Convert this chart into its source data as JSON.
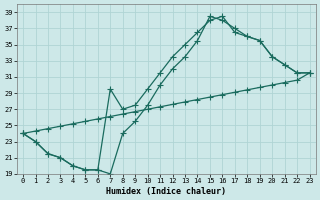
{
  "xlabel": "Humidex (Indice chaleur)",
  "xlim": [
    -0.5,
    23.5
  ],
  "ylim": [
    19,
    40
  ],
  "yticks": [
    19,
    21,
    23,
    25,
    27,
    29,
    31,
    33,
    35,
    37,
    39
  ],
  "xticks": [
    0,
    1,
    2,
    3,
    4,
    5,
    6,
    7,
    8,
    9,
    10,
    11,
    12,
    13,
    14,
    15,
    16,
    17,
    18,
    19,
    20,
    21,
    22,
    23
  ],
  "bg_color": "#cde8e8",
  "grid_color": "#b0d4d4",
  "line_color": "#1a6b5e",
  "line1_x": [
    0,
    1,
    2,
    3,
    4,
    5,
    6,
    7,
    8,
    9,
    10,
    11,
    12,
    13,
    14,
    15,
    16,
    17,
    18,
    19,
    20,
    21,
    22,
    23
  ],
  "line1_y": [
    24.0,
    23.0,
    21.5,
    21.0,
    20.0,
    19.5,
    19.5,
    19.0,
    24.0,
    25.5,
    27.5,
    30.0,
    32.0,
    33.5,
    35.5,
    38.5,
    38.0,
    37.0,
    36.0,
    35.5,
    33.5,
    32.5,
    31.5,
    31.5
  ],
  "line2_x": [
    0,
    1,
    2,
    3,
    4,
    5,
    6,
    7,
    8,
    9,
    10,
    11,
    12,
    13,
    14,
    15,
    16,
    17,
    18,
    19,
    20,
    21,
    22,
    23
  ],
  "line2_y": [
    24.0,
    24.3,
    24.6,
    24.9,
    25.2,
    25.5,
    25.8,
    26.1,
    26.4,
    26.7,
    27.0,
    27.3,
    27.6,
    27.9,
    28.2,
    28.5,
    28.8,
    29.1,
    29.4,
    29.7,
    30.0,
    30.3,
    30.6,
    31.5
  ],
  "line3_x": [
    0,
    1,
    2,
    3,
    4,
    5,
    6,
    7,
    8,
    9,
    10,
    11,
    12,
    13,
    14,
    15,
    16,
    17,
    18,
    19,
    20,
    21,
    22,
    23
  ],
  "line3_y": [
    24.0,
    23.0,
    21.5,
    21.0,
    20.0,
    19.5,
    19.5,
    29.5,
    27.0,
    27.5,
    29.5,
    31.5,
    33.5,
    35.0,
    36.5,
    38.0,
    38.5,
    36.5,
    36.0,
    35.5,
    33.5,
    32.5,
    31.5,
    31.5
  ]
}
